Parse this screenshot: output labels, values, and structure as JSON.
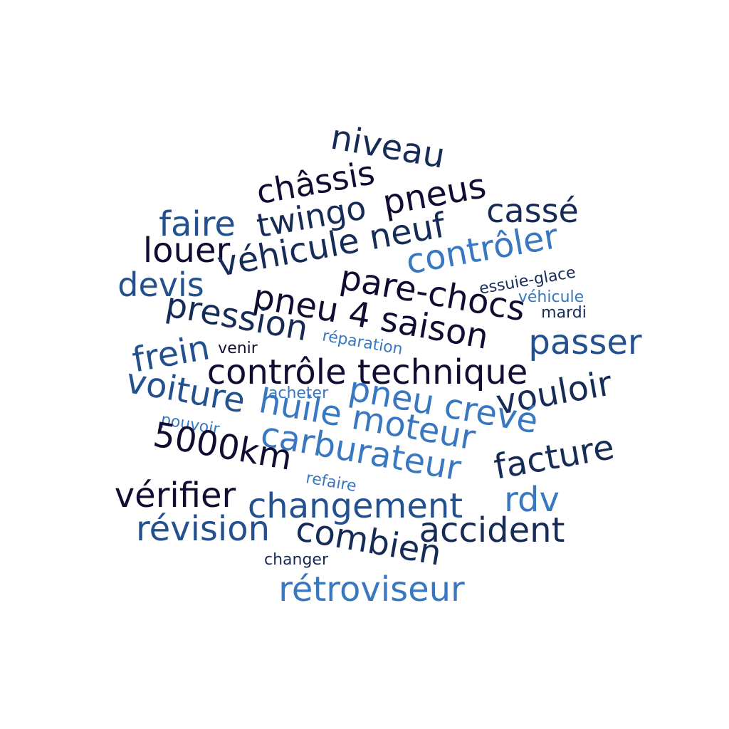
{
  "palette": {
    "dark": "#110d32",
    "navy": "#172b57",
    "mid": "#23508f",
    "light": "#3978c0"
  },
  "words": {
    "niveau": "niveau",
    "chassis": "châssis",
    "pneus": "pneus",
    "twingo": "twingo",
    "casse": "cassé",
    "faire": "faire",
    "louer": "louer",
    "vehicule_neuf": "véhicule neuf",
    "controler": "contrôler",
    "devis": "devis",
    "pare_chocs": "pare-chocs",
    "essuie_glace": "essuie-glace",
    "vehicule": "véhicule",
    "mardi": "mardi",
    "pneu_4_saison": "pneu 4 saison",
    "pression": "pression",
    "reparation": "réparation",
    "passer": "passer",
    "frein": "frein",
    "venir": "venir",
    "controle_technique": "contrôle technique",
    "vouloir": "vouloir",
    "acheter": "acheter",
    "voiture": "voiture",
    "pneu_creve": "pneu crevé",
    "huile_moteur": "huile moteur",
    "pouvoir": "pouvoir",
    "carburateur": "carburateur",
    "facture": "facture",
    "km_5000": "5000km",
    "refaire": "refaire",
    "verifier": "vérifier",
    "rdv": "rdv",
    "changement": "changement",
    "revision": "révision",
    "accident": "accident",
    "combien": "combien",
    "changer": "changer",
    "retroviseur": "rétroviseur"
  }
}
